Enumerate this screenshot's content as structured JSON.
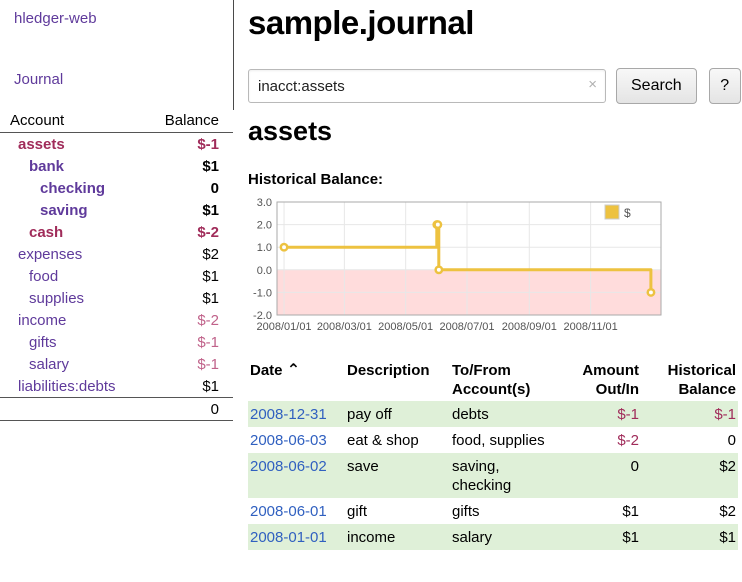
{
  "colors": {
    "link_purple": "#5f3a9b",
    "link_blue": "#3060c0",
    "negative": "#a02c5a",
    "negative_soft": "#c0628a",
    "row_green": "#dff0d8",
    "chart_line": "#edc240",
    "chart_negative_bg": "#ffdcdc",
    "chart_grid": "#e7e7e7",
    "chart_border": "#aaaaaa"
  },
  "sidebar": {
    "app_title": "hledger-web",
    "journal_link": "Journal",
    "accounts": {
      "header_account": "Account",
      "header_balance": "Balance",
      "rows": [
        {
          "name": "assets",
          "balance": "$-1",
          "depth": 0,
          "bold": true,
          "neg_name": true,
          "neg_bal": true
        },
        {
          "name": "bank",
          "balance": "$1",
          "depth": 1,
          "bold": true,
          "neg_name": false,
          "neg_bal": false
        },
        {
          "name": "checking",
          "balance": "0",
          "depth": 2,
          "bold": true,
          "neg_name": false,
          "neg_bal": false
        },
        {
          "name": "saving",
          "balance": "$1",
          "depth": 2,
          "bold": true,
          "neg_name": false,
          "neg_bal": false
        },
        {
          "name": "cash",
          "balance": "$-2",
          "depth": 1,
          "bold": true,
          "neg_name": true,
          "neg_bal": true
        },
        {
          "name": "expenses",
          "balance": "$2",
          "depth": 0,
          "bold": false,
          "neg_name": false,
          "neg_bal": false
        },
        {
          "name": "food",
          "balance": "$1",
          "depth": 1,
          "bold": false,
          "neg_name": false,
          "neg_bal": false
        },
        {
          "name": "supplies",
          "balance": "$1",
          "depth": 1,
          "bold": false,
          "neg_name": false,
          "neg_bal": false
        },
        {
          "name": "income",
          "balance": "$-2",
          "depth": 0,
          "bold": false,
          "neg_name": false,
          "neg_bal": true
        },
        {
          "name": "gifts",
          "balance": "$-1",
          "depth": 1,
          "bold": false,
          "neg_name": false,
          "neg_bal": true
        },
        {
          "name": "salary",
          "balance": "$-1",
          "depth": 1,
          "bold": false,
          "neg_name": false,
          "neg_bal": true
        },
        {
          "name": "liabilities:debts",
          "balance": "$1",
          "depth": 0,
          "bold": false,
          "neg_name": false,
          "neg_bal": false
        }
      ],
      "total": "0"
    }
  },
  "main": {
    "title": "sample.journal",
    "search": {
      "value": "inacct:assets",
      "clear_icon": "×",
      "search_button": "Search",
      "help_button": "?"
    },
    "account_heading": "assets",
    "chart_label": "Historical Balance:"
  },
  "chart_data": {
    "type": "line",
    "step": true,
    "title": "Historical Balance",
    "xlabel": "",
    "ylabel": "",
    "xlim": [
      "2007-12-25",
      "2009-01-10"
    ],
    "ylim": [
      -2,
      3
    ],
    "x_ticks": [
      "2008/01/01",
      "2008/03/01",
      "2008/05/01",
      "2008/07/01",
      "2008/09/01",
      "2008/11/01"
    ],
    "y_ticks": [
      "3.0",
      "2.0",
      "1.0",
      "0.0",
      "-1.0",
      "-2.0"
    ],
    "grid": true,
    "legend": {
      "label": "$",
      "position": "top-right"
    },
    "negative_region": [
      0,
      -2
    ],
    "series": [
      {
        "name": "$",
        "color": "#edc240",
        "points": [
          [
            "2008-01-01",
            1
          ],
          [
            "2008-06-01",
            2
          ],
          [
            "2008-06-02",
            2
          ],
          [
            "2008-06-03",
            0
          ],
          [
            "2008-12-31",
            -1
          ]
        ]
      }
    ]
  },
  "register": {
    "headers": {
      "date": "Date",
      "description": "Description",
      "accounts": "To/From Account(s)",
      "amount": "Amount Out/In",
      "balance": "Historical Balance"
    },
    "sort_icon": "⌃",
    "rows": [
      {
        "date": "2008-12-31",
        "description": "pay off",
        "accounts": "debts",
        "amount": "$-1",
        "balance": "$-1",
        "amount_neg": true,
        "balance_neg": true,
        "shaded": true
      },
      {
        "date": "2008-06-03",
        "description": "eat & shop",
        "accounts": "food, supplies",
        "amount": "$-2",
        "balance": "0",
        "amount_neg": true,
        "balance_neg": false,
        "shaded": false
      },
      {
        "date": "2008-06-02",
        "description": "save",
        "accounts": "saving, checking",
        "amount": "0",
        "balance": "$2",
        "amount_neg": false,
        "balance_neg": false,
        "shaded": true
      },
      {
        "date": "2008-06-01",
        "description": "gift",
        "accounts": "gifts",
        "amount": "$1",
        "balance": "$2",
        "amount_neg": false,
        "balance_neg": false,
        "shaded": false
      },
      {
        "date": "2008-01-01",
        "description": "income",
        "accounts": "salary",
        "amount": "$1",
        "balance": "$1",
        "amount_neg": false,
        "balance_neg": false,
        "shaded": true
      }
    ]
  }
}
